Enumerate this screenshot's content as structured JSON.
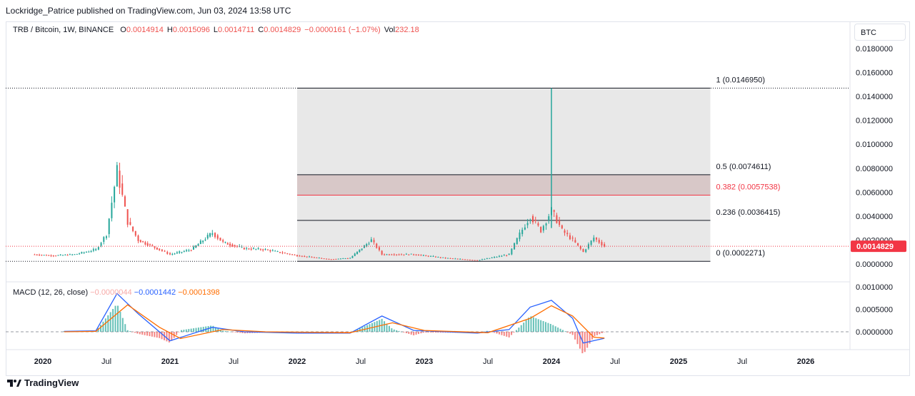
{
  "header": {
    "publisher": "Lockridge_Patrice published on TradingView.com, Jun 03, 2024 13:58 UTC"
  },
  "legend": {
    "symbol": "TRB / Bitcoin, 1W, BINANCE",
    "open_label": "O",
    "open": "0.0014914",
    "high_label": "H",
    "high": "0.0015096",
    "low_label": "L",
    "low": "0.0014711",
    "close_label": "C",
    "close": "0.0014829",
    "change": "−0.0000161 (−1.07%)",
    "vol_label": "Vol",
    "vol": "232.18"
  },
  "unit_button": "BTC",
  "price_axis_labels": [
    "0.0180000",
    "0.0160000",
    "0.0140000",
    "0.0120000",
    "0.0100000",
    "0.0080000",
    "0.0060000",
    "0.0040000",
    "0.0020000",
    "0.0000000"
  ],
  "current_price_label": "0.0014829",
  "fib_labels": {
    "l1": "1 (0.0146950)",
    "l05": "0.5 (0.0074611)",
    "l0382": "0.382 (0.0057538)",
    "l0236": "0.236 (0.0036415)",
    "l0": "0 (0.0002271)"
  },
  "macd_legend": {
    "name": "MACD (12, 26, close)",
    "hist": "−0.0000044",
    "macd": "−0.0001442",
    "signal": "−0.0001398"
  },
  "macd_axis_labels": [
    "0.0010000",
    "0.0005000",
    "0.0000000"
  ],
  "time_axis_labels": [
    "2020",
    "Jul",
    "2021",
    "Jul",
    "2022",
    "Jul",
    "2023",
    "Jul",
    "2024",
    "Jul",
    "2025",
    "Jul",
    "2026"
  ],
  "footer": {
    "brand": "TradingView"
  },
  "colors": {
    "up": "#26a69a",
    "down": "#ef5350",
    "macd": "#2962ff",
    "signal": "#ff6d00",
    "fib_zone": "#e6e6e6",
    "fib_band": "#d8c8c8",
    "current_line": "#f23645"
  },
  "chart_data": {
    "type": "candlestick",
    "title": "TRB / Bitcoin, 1W, BINANCE",
    "ylim": [
      -0.0005,
      0.019
    ],
    "y_ticks": [
      0.018,
      0.016,
      0.014,
      0.012,
      0.01,
      0.008,
      0.006,
      0.004,
      0.002,
      0.0
    ],
    "x_range": [
      "2019-10",
      "2026-06"
    ],
    "close_series": [
      {
        "date": "2019-10",
        "close": 0.0003
      },
      {
        "date": "2019-12",
        "close": 0.0008
      },
      {
        "date": "2020-02",
        "close": 0.0007
      },
      {
        "date": "2020-04",
        "close": 0.0008
      },
      {
        "date": "2020-06",
        "close": 0.0012
      },
      {
        "date": "2020-07",
        "close": 0.0025
      },
      {
        "date": "2020-08",
        "close": 0.0078
      },
      {
        "date": "2020-09",
        "close": 0.0035
      },
      {
        "date": "2020-10",
        "close": 0.002
      },
      {
        "date": "2020-12",
        "close": 0.0012
      },
      {
        "date": "2021-01",
        "close": 0.0008
      },
      {
        "date": "2021-03",
        "close": 0.0012
      },
      {
        "date": "2021-05",
        "close": 0.0026
      },
      {
        "date": "2021-06",
        "close": 0.0018
      },
      {
        "date": "2021-08",
        "close": 0.0013
      },
      {
        "date": "2021-10",
        "close": 0.0012
      },
      {
        "date": "2022-01",
        "close": 0.0007
      },
      {
        "date": "2022-04",
        "close": 0.0004
      },
      {
        "date": "2022-06",
        "close": 0.0005
      },
      {
        "date": "2022-08",
        "close": 0.002
      },
      {
        "date": "2022-09",
        "close": 0.0008
      },
      {
        "date": "2022-12",
        "close": 0.0008
      },
      {
        "date": "2023-03",
        "close": 0.0005
      },
      {
        "date": "2023-06",
        "close": 0.0003
      },
      {
        "date": "2023-09",
        "close": 0.0008
      },
      {
        "date": "2023-10",
        "close": 0.0025
      },
      {
        "date": "2023-11",
        "close": 0.004
      },
      {
        "date": "2023-12",
        "close": 0.0028
      },
      {
        "date": "2024-01",
        "close": 0.0045
      },
      {
        "date": "2024-02",
        "close": 0.0028
      },
      {
        "date": "2024-03",
        "close": 0.002
      },
      {
        "date": "2024-04",
        "close": 0.001
      },
      {
        "date": "2024-05",
        "close": 0.0022
      },
      {
        "date": "2024-06",
        "close": 0.0014829
      }
    ],
    "wick_high": {
      "date": "2024-01",
      "value": 0.014695
    },
    "fib_levels": [
      {
        "level": "1",
        "value": 0.014695
      },
      {
        "level": "0.5",
        "value": 0.0074611
      },
      {
        "level": "0.382",
        "value": 0.0057538
      },
      {
        "level": "0.236",
        "value": 0.0036415
      },
      {
        "level": "0",
        "value": 0.0002271
      }
    ],
    "fib_range": [
      "2022-01",
      "2025-04"
    ],
    "macd": {
      "ylim": [
        -0.0003,
        0.0011
      ],
      "y_ticks": [
        0.001,
        0.0005,
        0.0
      ],
      "macd_line": [
        {
          "date": "2020-03",
          "v": 1e-05
        },
        {
          "date": "2020-06",
          "v": 2e-05
        },
        {
          "date": "2020-08",
          "v": 0.00085
        },
        {
          "date": "2020-10",
          "v": 0.0004
        },
        {
          "date": "2021-01",
          "v": -0.0002
        },
        {
          "date": "2021-05",
          "v": 0.0001
        },
        {
          "date": "2021-08",
          "v": 0.0
        },
        {
          "date": "2022-01",
          "v": -3e-05
        },
        {
          "date": "2022-06",
          "v": -3e-05
        },
        {
          "date": "2022-09",
          "v": 0.00035
        },
        {
          "date": "2022-12",
          "v": 3e-05
        },
        {
          "date": "2023-06",
          "v": -3e-05
        },
        {
          "date": "2023-09",
          "v": 5e-05
        },
        {
          "date": "2023-11",
          "v": 0.00055
        },
        {
          "date": "2024-01",
          "v": 0.0007
        },
        {
          "date": "2024-03",
          "v": 0.0003
        },
        {
          "date": "2024-04",
          "v": -0.00025
        },
        {
          "date": "2024-06",
          "v": -0.0001442
        }
      ],
      "signal_line": [
        {
          "date": "2020-03",
          "v": 0.0
        },
        {
          "date": "2020-06",
          "v": 1e-05
        },
        {
          "date": "2020-09",
          "v": 0.0006
        },
        {
          "date": "2020-12",
          "v": 0.0001
        },
        {
          "date": "2021-02",
          "v": -0.00015
        },
        {
          "date": "2021-06",
          "v": 5e-05
        },
        {
          "date": "2021-10",
          "v": 0.0
        },
        {
          "date": "2022-06",
          "v": -2e-05
        },
        {
          "date": "2022-10",
          "v": 0.0002
        },
        {
          "date": "2023-01",
          "v": 3e-05
        },
        {
          "date": "2023-07",
          "v": -2e-05
        },
        {
          "date": "2023-11",
          "v": 0.0003
        },
        {
          "date": "2024-01",
          "v": 0.00058
        },
        {
          "date": "2024-03",
          "v": 0.00035
        },
        {
          "date": "2024-05",
          "v": -0.00012
        },
        {
          "date": "2024-06",
          "v": -0.0001398
        }
      ]
    }
  }
}
